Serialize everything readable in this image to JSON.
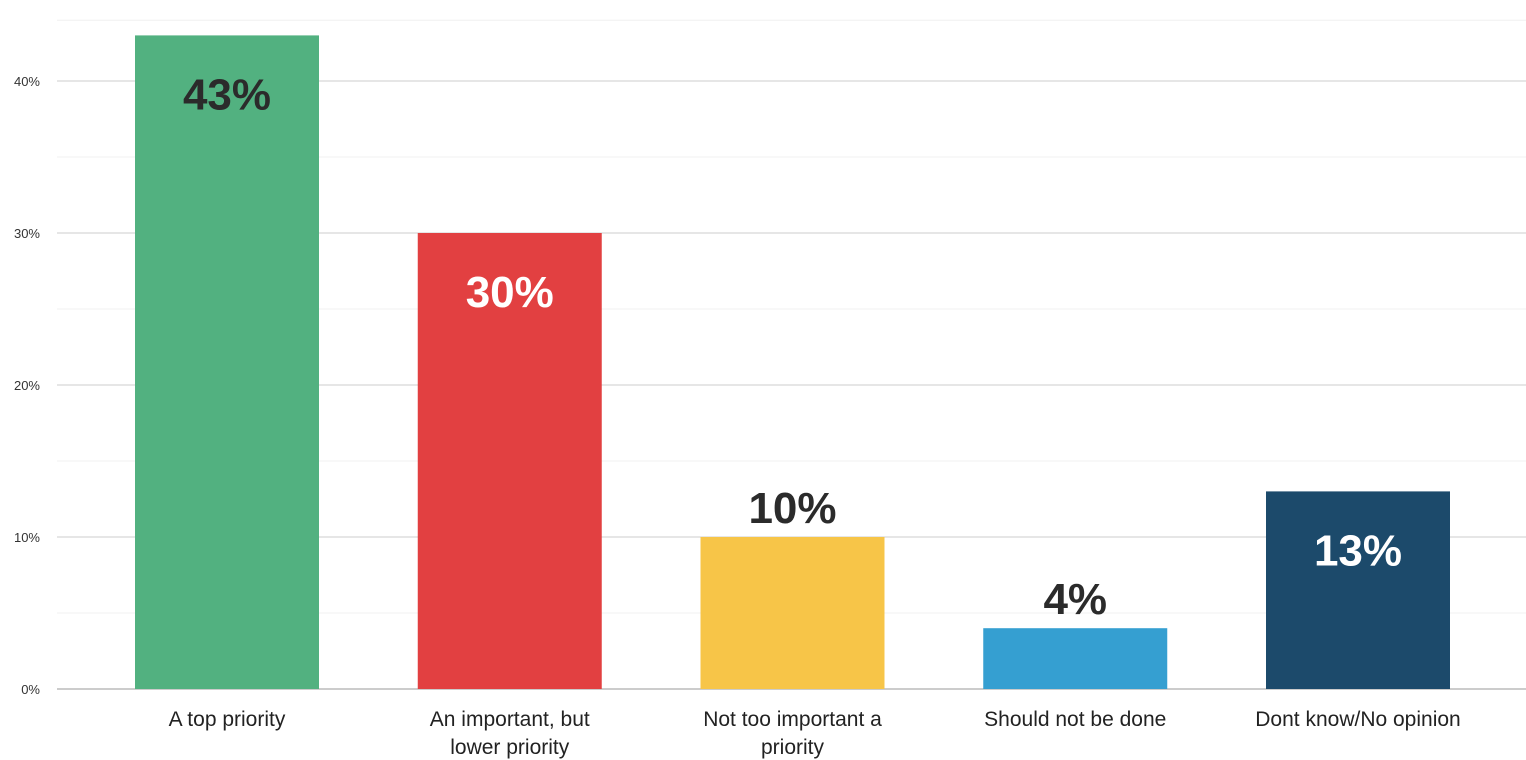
{
  "chart_data": {
    "type": "bar",
    "title": "",
    "xlabel": "",
    "ylabel": "",
    "ylim": [
      0,
      0.44
    ],
    "yticks": [
      "0%",
      "10%",
      "20%",
      "30%",
      "40%"
    ],
    "ytick_values": [
      0,
      0.1,
      0.2,
      0.3,
      0.4
    ],
    "minor_gridlines": [
      0.05,
      0.15,
      0.25,
      0.35,
      0.44
    ],
    "grid": true,
    "legend": "none",
    "categories": [
      [
        "A top priority"
      ],
      [
        "An important, but",
        "lower priority"
      ],
      [
        "Not too important a",
        "priority"
      ],
      [
        "Should not be done"
      ],
      [
        "Dont know/No opinion"
      ]
    ],
    "values": [
      0.43,
      0.3,
      0.1,
      0.04,
      0.13
    ],
    "data_labels": [
      "43%",
      "30%",
      "10%",
      "4%",
      "13%"
    ],
    "label_position": [
      "inside",
      "inside",
      "outside",
      "outside",
      "inside"
    ],
    "colors": [
      "#52b180",
      "#e24041",
      "#f7c548",
      "#359fd1",
      "#1c4a6b"
    ],
    "label_colors": [
      "#2b2b2b",
      "#ffffff",
      "#2b2b2b",
      "#2b2b2b",
      "#ffffff"
    ]
  }
}
